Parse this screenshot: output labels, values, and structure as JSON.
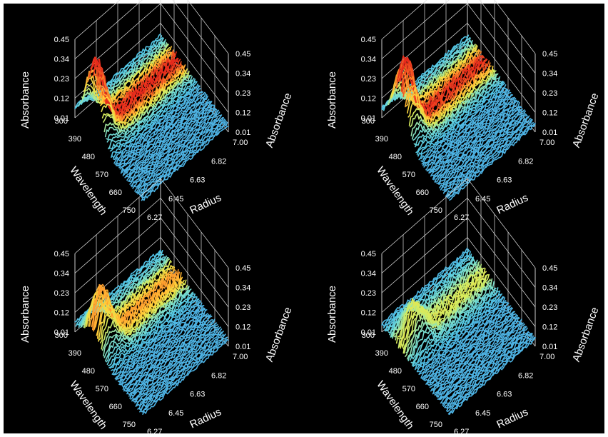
{
  "colors": {
    "background": "#000000",
    "frame": "#ffffff",
    "gridlines": "#e0e0e0",
    "colormap": [
      "#2b36a8",
      "#3f7fe0",
      "#53c7e6",
      "#7fe0c9",
      "#d9ec5a",
      "#ffd23a",
      "#ff8a2a",
      "#e62a1c"
    ]
  },
  "chart_data": [
    {
      "type": "surface3d",
      "panel": "top-left",
      "zlabel_left": "Absorbance",
      "zlabel_right": "Absorbance",
      "xlabel": "Wavelength",
      "ylabel": "Radius",
      "z_ticks": [
        "0.01",
        "0.12",
        "0.23",
        "0.34",
        "0.45"
      ],
      "wavelength_ticks": [
        "300",
        "390",
        "480",
        "570",
        "660",
        "750"
      ],
      "radius_ticks": [
        "6.27",
        "6.45",
        "6.63",
        "6.82",
        "7.00"
      ],
      "zlim": [
        0.01,
        0.45
      ],
      "wavelength_range": [
        300,
        750
      ],
      "radius_range": [
        6.27,
        7.0
      ],
      "baseline_absorbance": 0.05,
      "peak": {
        "wavelength": 420,
        "radius": 6.3,
        "absorbance": 0.45
      },
      "grid": true
    },
    {
      "type": "surface3d",
      "panel": "top-right",
      "zlabel_left": "Absorbance",
      "zlabel_right": "Absorbance",
      "xlabel": "Wavelength",
      "ylabel": "Radius",
      "z_ticks": [
        "0.01",
        "0.12",
        "0.23",
        "0.34",
        "0.45"
      ],
      "wavelength_ticks": [
        "300",
        "390",
        "480",
        "570",
        "660",
        "750"
      ],
      "radius_ticks": [
        "6.27",
        "6.45",
        "6.63",
        "6.82",
        "7.00"
      ],
      "zlim": [
        0.01,
        0.45
      ],
      "wavelength_range": [
        300,
        750
      ],
      "radius_range": [
        6.27,
        7.0
      ],
      "baseline_absorbance": 0.05,
      "peak": {
        "wavelength": 420,
        "radius": 6.32,
        "absorbance": 0.44
      },
      "grid": true
    },
    {
      "type": "surface3d",
      "panel": "bottom-left",
      "zlabel_left": "Absorbance",
      "zlabel_right": "Absorbance",
      "xlabel": "Wavelength",
      "ylabel": "Radius",
      "z_ticks": [
        "0.01",
        "0.12",
        "0.23",
        "0.34",
        "0.45"
      ],
      "wavelength_ticks": [
        "300",
        "390",
        "480",
        "570",
        "660",
        "750"
      ],
      "radius_ticks": [
        "6.27",
        "6.45",
        "6.63",
        "6.82",
        "7.00"
      ],
      "zlim": [
        0.01,
        0.45
      ],
      "wavelength_range": [
        300,
        750
      ],
      "radius_range": [
        6.27,
        7.0
      ],
      "baseline_absorbance": 0.05,
      "peak": {
        "wavelength": 420,
        "radius": 6.35,
        "absorbance": 0.34
      },
      "grid": true
    },
    {
      "type": "surface3d",
      "panel": "bottom-right",
      "zlabel_left": "Absorbance",
      "zlabel_right": "Absorbance",
      "xlabel": "Wavelength",
      "ylabel": "Radius",
      "z_ticks": [
        "0.01",
        "0.12",
        "0.23",
        "0.34",
        "0.45"
      ],
      "wavelength_ticks": [
        "300",
        "390",
        "480",
        "570",
        "660",
        "750"
      ],
      "radius_ticks": [
        "6.27",
        "6.45",
        "6.63",
        "6.82",
        "7.00"
      ],
      "zlim": [
        0.01,
        0.45
      ],
      "wavelength_range": [
        300,
        750
      ],
      "radius_range": [
        6.27,
        7.0
      ],
      "baseline_absorbance": 0.05,
      "peak": {
        "wavelength": 420,
        "radius": 6.4,
        "absorbance": 0.22
      },
      "grid": true
    }
  ]
}
